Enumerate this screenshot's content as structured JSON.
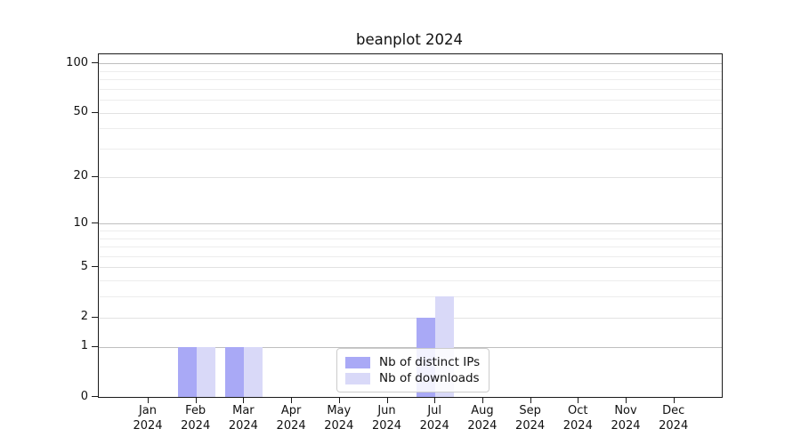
{
  "chart_data": {
    "type": "bar",
    "title": "beanplot 2024",
    "categories": [
      "Jan",
      "Feb",
      "Mar",
      "Apr",
      "May",
      "Jun",
      "Jul",
      "Aug",
      "Sep",
      "Oct",
      "Nov",
      "Dec"
    ],
    "x_year_label": "2024",
    "series": [
      {
        "name": "Nb of distinct IPs",
        "color": "#a9a9f6",
        "values": [
          0,
          1,
          1,
          0,
          0,
          0,
          2,
          0,
          0,
          0,
          0,
          0
        ]
      },
      {
        "name": "Nb of downloads",
        "color": "#d9d9f8",
        "values": [
          0,
          1,
          1,
          0,
          0,
          0,
          3,
          0,
          0,
          0,
          0,
          0
        ]
      }
    ],
    "xlabel": "",
    "ylabel": "",
    "y_axis": {
      "scale": "log1p",
      "tick_values": [
        0,
        1,
        2,
        5,
        10,
        20,
        50,
        100
      ],
      "minor_gridline_values": [
        3,
        4,
        6,
        7,
        8,
        9,
        30,
        40,
        60,
        70,
        80,
        90
      ],
      "ylim": [
        0,
        113
      ]
    },
    "legend": {
      "position": "lower center",
      "entries": [
        "Nb of distinct IPs",
        "Nb of downloads"
      ]
    },
    "grid": true
  },
  "style": {
    "background": "#ffffff",
    "axis_color": "#1a1a1a",
    "grid_strong": "#bfbfbf",
    "grid_major": "#e2e2e2",
    "grid_minor": "#ededed",
    "text_color": "#111111",
    "legend_border": "#cccccc"
  }
}
